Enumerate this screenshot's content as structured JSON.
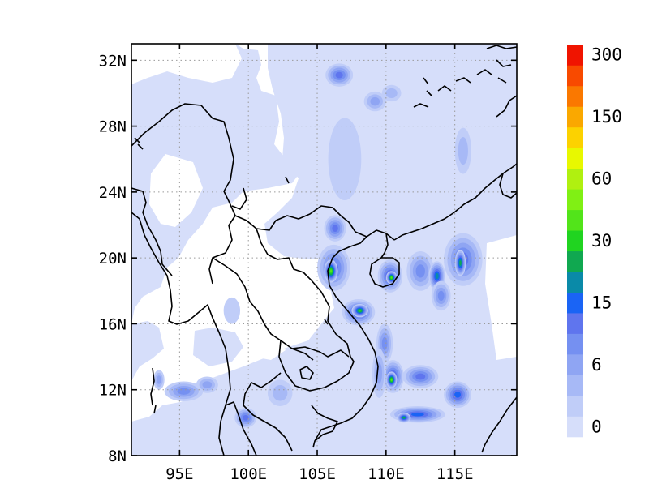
{
  "map": {
    "lon_range": [
      91.5,
      119.5
    ],
    "lat_range": [
      8,
      33
    ],
    "lon_ticks": [
      {
        "value": 95,
        "label": "95E"
      },
      {
        "value": 100,
        "label": "100E"
      },
      {
        "value": 105,
        "label": "105E"
      },
      {
        "value": 110,
        "label": "110E"
      },
      {
        "value": 115,
        "label": "115E"
      }
    ],
    "lat_ticks": [
      {
        "value": 8,
        "label": "8N"
      },
      {
        "value": 12,
        "label": "12N"
      },
      {
        "value": 16,
        "label": "16N"
      },
      {
        "value": 20,
        "label": "20N"
      },
      {
        "value": 24,
        "label": "24N"
      },
      {
        "value": 28,
        "label": "28N"
      },
      {
        "value": 32,
        "label": "32N"
      }
    ],
    "grid": "dotted",
    "background_color": "#d6defa"
  },
  "colorbar": {
    "labels": [
      {
        "text": "0",
        "level": 0
      },
      {
        "text": "6",
        "level": 3
      },
      {
        "text": "15",
        "level": 6
      },
      {
        "text": "30",
        "level": 9
      },
      {
        "text": "60",
        "level": 12
      },
      {
        "text": "150",
        "level": 15
      },
      {
        "text": "300",
        "level": 18
      }
    ],
    "colors": [
      "#d6defa",
      "#c0cdf8",
      "#a7b9f6",
      "#8fa5f3",
      "#7590f1",
      "#5f75ee",
      "#1a64f5",
      "#0a8aa8",
      "#10a850",
      "#20d420",
      "#52e41a",
      "#80f014",
      "#b0f010",
      "#e8f800",
      "#fcd200",
      "#faa800",
      "#fa7800",
      "#f84a00",
      "#f01400"
    ]
  },
  "regions": [
    {
      "lon": 106.6,
      "lat": 31.1,
      "rx": 1.0,
      "ry": 0.7,
      "level": 5
    },
    {
      "lon": 109.2,
      "lat": 29.5,
      "rx": 0.8,
      "ry": 0.6,
      "level": 3
    },
    {
      "lon": 110.4,
      "lat": 30.0,
      "rx": 0.7,
      "ry": 0.5,
      "level": 2
    },
    {
      "lon": 107.0,
      "lat": 26.0,
      "rx": 1.2,
      "ry": 2.5,
      "level": 1
    },
    {
      "lon": 106.3,
      "lat": 21.8,
      "rx": 0.8,
      "ry": 0.8,
      "level": 5
    },
    {
      "lon": 106.2,
      "lat": 19.4,
      "rx": 1.2,
      "ry": 1.4,
      "level": 5
    },
    {
      "lon": 106.0,
      "lat": 19.2,
      "rx": 0.5,
      "ry": 0.7,
      "level": 10
    },
    {
      "lon": 108.0,
      "lat": 16.7,
      "rx": 1.2,
      "ry": 0.8,
      "level": 6
    },
    {
      "lon": 108.1,
      "lat": 16.8,
      "rx": 0.6,
      "ry": 0.4,
      "level": 9
    },
    {
      "lon": 110.3,
      "lat": 18.9,
      "rx": 0.9,
      "ry": 1.0,
      "level": 6
    },
    {
      "lon": 110.4,
      "lat": 18.8,
      "rx": 0.4,
      "ry": 0.4,
      "level": 10
    },
    {
      "lon": 112.5,
      "lat": 19.2,
      "rx": 1.0,
      "ry": 1.2,
      "level": 4
    },
    {
      "lon": 113.7,
      "lat": 18.9,
      "rx": 0.6,
      "ry": 0.9,
      "level": 7
    },
    {
      "lon": 115.6,
      "lat": 19.9,
      "rx": 1.4,
      "ry": 1.6,
      "level": 5
    },
    {
      "lon": 115.4,
      "lat": 19.7,
      "rx": 0.4,
      "ry": 0.8,
      "level": 8
    },
    {
      "lon": 114.0,
      "lat": 17.7,
      "rx": 0.7,
      "ry": 0.9,
      "level": 4
    },
    {
      "lon": 109.9,
      "lat": 14.8,
      "rx": 0.6,
      "ry": 1.2,
      "level": 4
    },
    {
      "lon": 110.5,
      "lat": 12.8,
      "rx": 0.8,
      "ry": 1.0,
      "level": 6
    },
    {
      "lon": 110.4,
      "lat": 12.6,
      "rx": 0.4,
      "ry": 0.5,
      "level": 10
    },
    {
      "lon": 112.5,
      "lat": 12.8,
      "rx": 1.3,
      "ry": 0.7,
      "level": 5
    },
    {
      "lon": 115.2,
      "lat": 11.7,
      "rx": 1.0,
      "ry": 0.8,
      "level": 6
    },
    {
      "lon": 112.3,
      "lat": 10.5,
      "rx": 2.0,
      "ry": 0.5,
      "level": 6
    },
    {
      "lon": 111.3,
      "lat": 10.3,
      "rx": 0.5,
      "ry": 0.3,
      "level": 8
    },
    {
      "lon": 99.8,
      "lat": 10.3,
      "rx": 0.8,
      "ry": 0.6,
      "level": 5
    },
    {
      "lon": 95.3,
      "lat": 11.9,
      "rx": 1.4,
      "ry": 0.6,
      "level": 4
    },
    {
      "lon": 97.0,
      "lat": 12.3,
      "rx": 0.8,
      "ry": 0.5,
      "level": 3
    },
    {
      "lon": 93.5,
      "lat": 12.6,
      "rx": 0.4,
      "ry": 0.6,
      "level": 3
    },
    {
      "lon": 115.6,
      "lat": 26.5,
      "rx": 0.6,
      "ry": 1.4,
      "level": 2
    },
    {
      "lon": 109.5,
      "lat": 13.0,
      "rx": 0.5,
      "ry": 1.5,
      "level": 3
    },
    {
      "lon": 102.3,
      "lat": 11.8,
      "rx": 0.9,
      "ry": 0.8,
      "level": 2
    },
    {
      "lon": 98.8,
      "lat": 16.8,
      "rx": 0.6,
      "ry": 0.8,
      "level": 1
    }
  ]
}
